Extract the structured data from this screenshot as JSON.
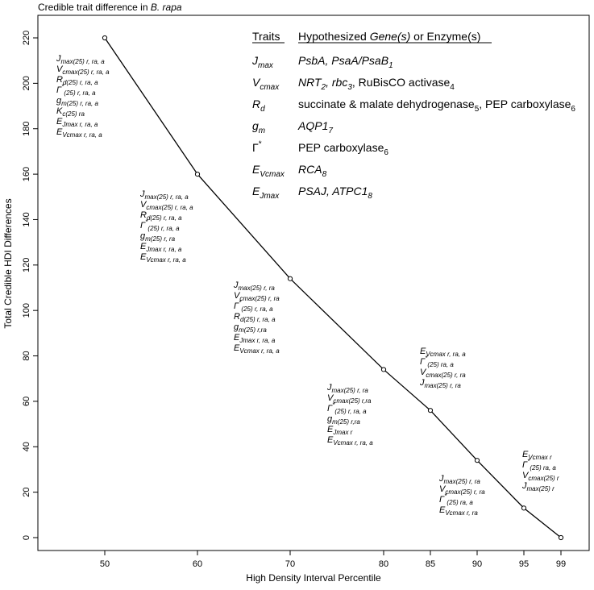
{
  "chart_data": {
    "type": "line",
    "title": "Credible trait difference in B. rapa",
    "title_parts": [
      "Credible trait difference in ",
      "B. rapa"
    ],
    "xlabel": "High Density Interval Percentile",
    "ylabel": "Total Credible HDI Differences",
    "x_ticks": [
      "50",
      "60",
      "70",
      "80",
      "85",
      "90",
      "95",
      "99"
    ],
    "y_ticks": [
      "0",
      "20",
      "40",
      "60",
      "80",
      "100",
      "120",
      "140",
      "160",
      "180",
      "200",
      "220"
    ],
    "ylim": [
      0,
      228
    ],
    "series": [
      {
        "x": [
          50,
          60,
          70,
          80,
          85,
          90,
          95,
          99
        ],
        "values": [
          220,
          160,
          114,
          74,
          56,
          34,
          13,
          0
        ]
      }
    ],
    "markers": "open-circle",
    "grid": false,
    "annotations": [
      {
        "x": 50,
        "lines": [
          [
            [
              "J",
              ""
            ],
            [
              "max(25) r, ra, a",
              "sub"
            ]
          ],
          [
            [
              "V",
              ""
            ],
            [
              "cmax(25) r, ra, a",
              "sub"
            ]
          ],
          [
            [
              "R",
              ""
            ],
            [
              "d(25) r, ra, a",
              "sub"
            ]
          ],
          [
            [
              "Γ",
              ""
            ],
            [
              "*",
              "sup"
            ],
            [
              "(25) r, ra, a",
              "sub"
            ]
          ],
          [
            [
              "g",
              ""
            ],
            [
              "m(25) r, ra, a",
              "sub"
            ]
          ],
          [
            [
              "K",
              ""
            ],
            [
              "c(25) ra",
              "sub"
            ]
          ],
          [
            [
              "E",
              ""
            ],
            [
              "Jmax r, ra, a",
              "sub"
            ]
          ],
          [
            [
              "E",
              ""
            ],
            [
              "Vcmax r, ra, a",
              "sub"
            ]
          ]
        ]
      },
      {
        "x": 60,
        "lines": [
          [
            [
              "J",
              ""
            ],
            [
              "max(25) r, ra, a",
              "sub"
            ]
          ],
          [
            [
              "V",
              ""
            ],
            [
              "cmax(25) r, ra, a",
              "sub"
            ]
          ],
          [
            [
              "R",
              ""
            ],
            [
              "d(25) r, ra, a",
              "sub"
            ]
          ],
          [
            [
              "Γ",
              ""
            ],
            [
              "*",
              "sup"
            ],
            [
              "(25) r, ra, a",
              "sub"
            ]
          ],
          [
            [
              "g",
              ""
            ],
            [
              "m(25) r, ra",
              "sub"
            ]
          ],
          [
            [
              "E",
              ""
            ],
            [
              "Jmax r, ra, a",
              "sub"
            ]
          ],
          [
            [
              "E",
              ""
            ],
            [
              "Vcmax r, ra, a",
              "sub"
            ]
          ]
        ]
      },
      {
        "x": 70,
        "lines": [
          [
            [
              "J",
              ""
            ],
            [
              "max(25) r, ra",
              "sub"
            ]
          ],
          [
            [
              "V",
              ""
            ],
            [
              "cmax(25) r, ra",
              "sub"
            ]
          ],
          [
            [
              "Γ",
              ""
            ],
            [
              "*",
              "sup"
            ],
            [
              "(25) r, ra, a",
              "sub"
            ]
          ],
          [
            [
              "R",
              ""
            ],
            [
              "d(25) r, ra, a",
              "sub"
            ]
          ],
          [
            [
              "g",
              ""
            ],
            [
              "m(25) r,ra",
              "sub"
            ]
          ],
          [
            [
              "E",
              ""
            ],
            [
              "Jmax r, ra, a",
              "sub"
            ]
          ],
          [
            [
              "E",
              ""
            ],
            [
              "Vcmax r, ra, a",
              "sub"
            ]
          ]
        ]
      },
      {
        "x": 80,
        "lines": [
          [
            [
              "J",
              ""
            ],
            [
              "max(25) r, ra",
              "sub"
            ]
          ],
          [
            [
              "V",
              ""
            ],
            [
              "cmax(25) r,ra",
              "sub"
            ]
          ],
          [
            [
              "Γ",
              ""
            ],
            [
              "*",
              "sup"
            ],
            [
              "(25) r, ra, a",
              "sub"
            ]
          ],
          [
            [
              "g",
              ""
            ],
            [
              "m(25) r,ra",
              "sub"
            ]
          ],
          [
            [
              "E",
              ""
            ],
            [
              "Jmax r",
              "sub"
            ]
          ],
          [
            [
              "E",
              ""
            ],
            [
              "Vcmax r, ra, a",
              "sub"
            ]
          ]
        ]
      },
      {
        "x": 85,
        "lines": [
          [
            [
              "E",
              ""
            ],
            [
              "Vcmax r, ra, a",
              "sub"
            ]
          ],
          [
            [
              "Γ",
              ""
            ],
            [
              "*",
              "sup"
            ],
            [
              "(25) ra, a",
              "sub"
            ]
          ],
          [
            [
              "V",
              ""
            ],
            [
              "cmax(25) r, ra",
              "sub"
            ]
          ],
          [
            [
              "J",
              ""
            ],
            [
              "max(25) r, ra",
              "sub"
            ]
          ]
        ]
      },
      {
        "x": 90,
        "lines": [
          [
            [
              "J",
              ""
            ],
            [
              "max(25) r, ra",
              "sub"
            ]
          ],
          [
            [
              "V",
              ""
            ],
            [
              "cmax(25) r, ra",
              "sub"
            ]
          ],
          [
            [
              "Γ",
              ""
            ],
            [
              "*",
              "sup"
            ],
            [
              "(25) ra, a",
              "sub"
            ]
          ],
          [
            [
              "E",
              ""
            ],
            [
              "Vcmax r, ra",
              "sub"
            ]
          ]
        ]
      },
      {
        "x": 95,
        "lines": [
          [
            [
              "E",
              ""
            ],
            [
              "Vcmax r",
              "sub"
            ]
          ],
          [
            [
              "Γ",
              ""
            ],
            [
              "*",
              "sup"
            ],
            [
              "(25) ra, a",
              "sub"
            ]
          ],
          [
            [
              "V",
              ""
            ],
            [
              "cmax(25) r",
              "sub"
            ]
          ],
          [
            [
              "J",
              ""
            ],
            [
              "max(25) r",
              "sub"
            ]
          ]
        ]
      }
    ],
    "table": {
      "header_traits": "Traits",
      "header_genes": [
        [
          "Hypothesized ",
          ""
        ],
        [
          "Gene(s)",
          "i"
        ],
        [
          " or Enzyme(s)",
          ""
        ]
      ],
      "rows": [
        {
          "trait": [
            [
              "J",
              "i"
            ],
            [
              "max",
              "isub"
            ]
          ],
          "genes": [
            [
              "PsbA, PsaA/PsaB",
              "i"
            ],
            [
              "1",
              "isub"
            ]
          ]
        },
        {
          "trait": [
            [
              "V",
              "i"
            ],
            [
              "cmax",
              "isub"
            ]
          ],
          "genes": [
            [
              "NRT",
              "i"
            ],
            [
              "2",
              "isub"
            ],
            [
              ", ",
              "i"
            ],
            [
              "rbc",
              "i"
            ],
            [
              "3",
              "isub"
            ],
            [
              ", RuBisCO activase",
              ""
            ],
            [
              "4",
              "sub"
            ]
          ]
        },
        {
          "trait": [
            [
              "R",
              "i"
            ],
            [
              "d",
              "isub"
            ]
          ],
          "genes": [
            [
              "succinate & malate dehydrogenase",
              ""
            ],
            [
              "5",
              "sub"
            ],
            [
              ", PEP carboxylase",
              ""
            ],
            [
              "6",
              "sub"
            ]
          ]
        },
        {
          "trait": [
            [
              "g",
              "i"
            ],
            [
              "m",
              "isub"
            ]
          ],
          "genes": [
            [
              "AQP1",
              "i"
            ],
            [
              "7",
              "isub"
            ]
          ]
        },
        {
          "trait": [
            [
              "Γ",
              ""
            ],
            [
              "*",
              "sup"
            ]
          ],
          "genes": [
            [
              "PEP carboxylase",
              ""
            ],
            [
              "6",
              "sub"
            ]
          ]
        },
        {
          "trait": [
            [
              "E",
              "i"
            ],
            [
              "Vcmax",
              "isub"
            ]
          ],
          "genes": [
            [
              "RCA",
              "i"
            ],
            [
              "8",
              "isub"
            ]
          ]
        },
        {
          "trait": [
            [
              "E",
              "i"
            ],
            [
              "Jmax",
              "isub"
            ]
          ],
          "genes": [
            [
              "PSAJ, ATPC1",
              "i"
            ],
            [
              "8",
              "isub"
            ]
          ]
        }
      ]
    }
  }
}
